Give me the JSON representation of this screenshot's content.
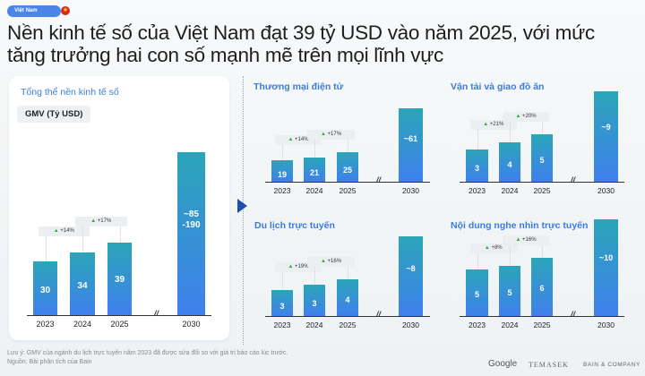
{
  "header": {
    "country_tag": "Việt Nam",
    "flag_icon": "vietnam-flag-icon",
    "title": "Nền kinh tế số của Việt Nam đạt 39 tỷ USD vào năm 2025, với mức tăng trưởng hai con số mạnh mẽ trên mọi lĩnh vực"
  },
  "main_panel": {
    "title": "Tổng thể nền kinh tế số",
    "metric_label": "GMV (Tỷ USD)"
  },
  "colors": {
    "bar_top": "#2ba5b8",
    "bar_bottom": "#3f80ee",
    "title_blue": "#3b7be0",
    "growth_up": "#34a853",
    "arrow": "#1d4fb0"
  },
  "chart_data": [
    {
      "type": "bar",
      "title": "Tổng thể nền kinh tế số",
      "ylabel": "GMV (Tỷ USD)",
      "categories": [
        "2023",
        "2024",
        "2025",
        "2030"
      ],
      "values": [
        30,
        34,
        39,
        [
          85,
          190
        ]
      ],
      "value_labels": [
        "30",
        "34",
        "39",
        "~85\n-190"
      ],
      "growth": [
        "+14%",
        "+17%"
      ],
      "axis_break": "//"
    },
    {
      "type": "bar",
      "title": "Thương mại điện tử",
      "categories": [
        "2023",
        "2024",
        "2025",
        "2030"
      ],
      "values": [
        19,
        21,
        25,
        61
      ],
      "value_labels": [
        "19",
        "21",
        "25",
        "~61"
      ],
      "growth": [
        "+14%",
        "+17%"
      ],
      "axis_break": "//"
    },
    {
      "type": "bar",
      "title": "Vận tải và giao đồ ăn",
      "categories": [
        "2023",
        "2024",
        "2025",
        "2030"
      ],
      "values": [
        3,
        4,
        5,
        9
      ],
      "value_labels": [
        "3",
        "4",
        "5",
        "~9"
      ],
      "growth": [
        "+21%",
        "+20%"
      ],
      "axis_break": "//"
    },
    {
      "type": "bar",
      "title": "Du lịch trực tuyến",
      "categories": [
        "2023",
        "2024",
        "2025",
        "2030"
      ],
      "values": [
        3,
        3,
        4,
        8
      ],
      "value_labels": [
        "3",
        "3",
        "4",
        "~8"
      ],
      "growth": [
        "+19%",
        "+16%"
      ],
      "axis_break": "//"
    },
    {
      "type": "bar",
      "title": "Nội dung nghe nhìn trực tuyến",
      "categories": [
        "2023",
        "2024",
        "2025",
        "2030"
      ],
      "values": [
        5,
        5,
        6,
        10
      ],
      "value_labels": [
        "5",
        "5",
        "6",
        "~10"
      ],
      "growth": [
        "+8%",
        "+16%"
      ],
      "axis_break": "//"
    }
  ],
  "footer": {
    "note": "Lưu ý: GMV của ngành du lịch trực tuyến năm 2023 đã được sửa đổi so với giá trị báo cáo lúc trước.",
    "source": "Nguồn: Bài phân tích của Bain",
    "logos": [
      "Google",
      "TEMASEK",
      "BAIN & COMPANY"
    ]
  }
}
